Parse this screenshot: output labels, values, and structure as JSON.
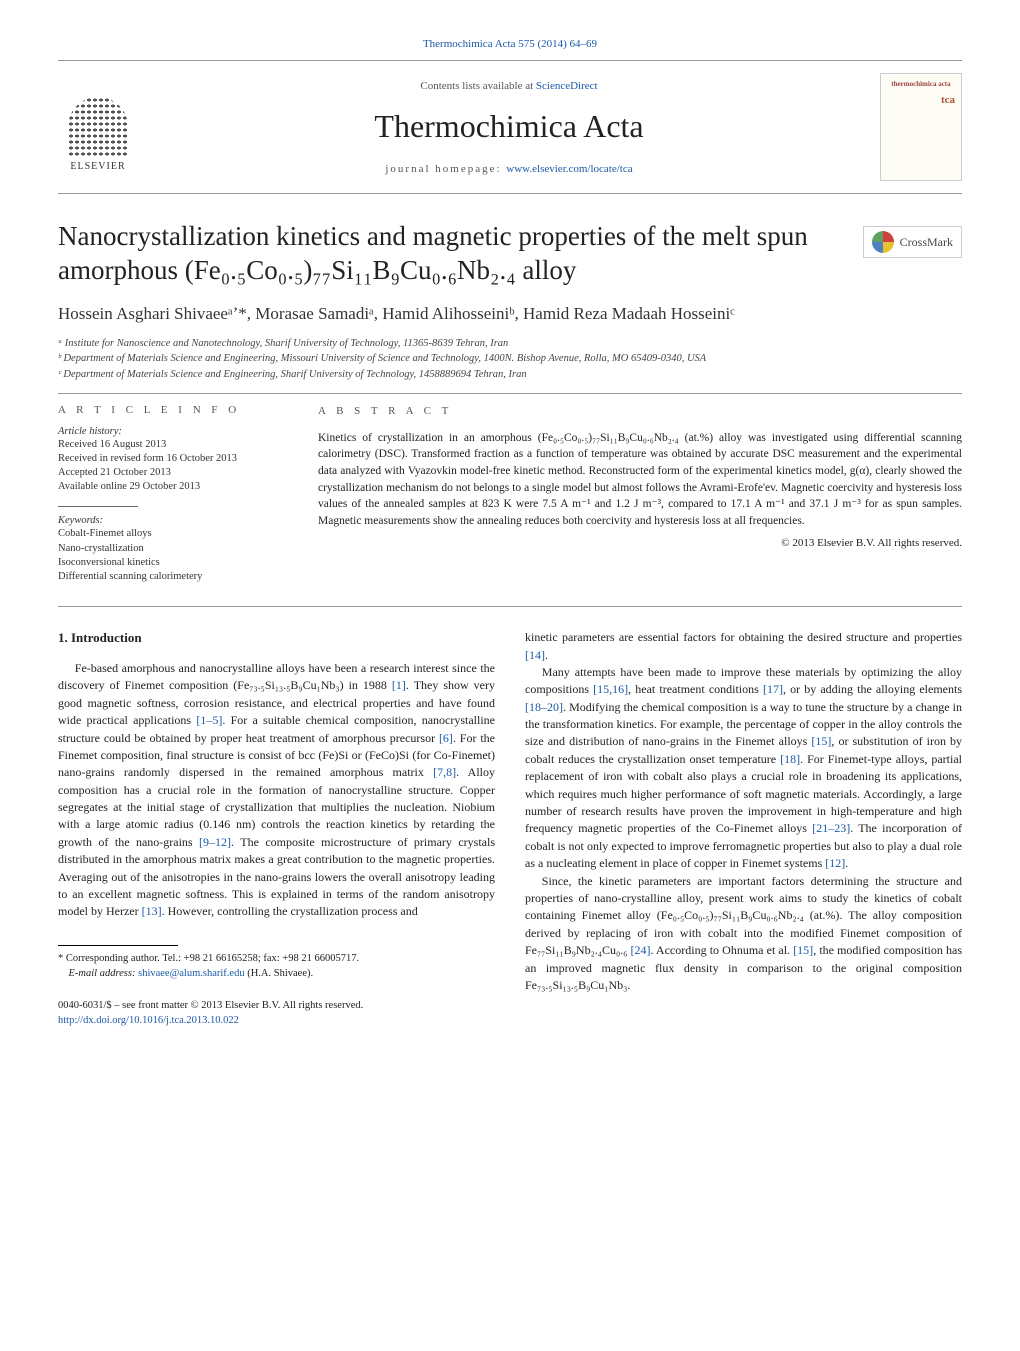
{
  "top_citation": "Thermochimica Acta 575 (2014) 64–69",
  "header": {
    "contents_prefix": "Contents lists available at ",
    "contents_link": "ScienceDirect",
    "journal": "Thermochimica Acta",
    "homepage_prefix": "journal homepage: ",
    "homepage_link": "www.elsevier.com/locate/tca",
    "elsevier": "ELSEVIER",
    "cover_small": "thermochimica acta",
    "cover_abbrev": "tca"
  },
  "crossmark": "CrossMark",
  "title": "Nanocrystallization kinetics and magnetic properties of the melt spun amorphous (Fe₀.₅Co₀.₅)₇₇Si₁₁B₉Cu₀.₆Nb₂.₄ alloy",
  "authors": "Hossein Asghari Shivaeeᵃʼ*, Morasae Samadiᵃ, Hamid Alihosseiniᵇ, Hamid Reza Madaah Hosseiniᶜ",
  "affiliations": {
    "a": "ᵃ Institute for Nanoscience and Nanotechnology, Sharif University of Technology, 11365-8639 Tehran, Iran",
    "b": "ᵇ Department of Materials Science and Engineering, Missouri University of Science and Technology, 1400N. Bishop Avenue, Rolla, MO 65409-0340, USA",
    "c": "ᶜ Department of Materials Science and Engineering, Sharif University of Technology, 1458889694 Tehran, Iran"
  },
  "article_info": {
    "label": "A R T I C L E   I N F O",
    "history_label": "Article history:",
    "history": [
      "Received 16 August 2013",
      "Received in revised form 16 October 2013",
      "Accepted 21 October 2013",
      "Available online 29 October 2013"
    ],
    "keywords_label": "Keywords:",
    "keywords": [
      "Cobalt-Finemet alloys",
      "Nano-crystallization",
      "Isoconversional kinetics",
      "Differential scanning calorimetery"
    ]
  },
  "abstract": {
    "label": "A B S T R A C T",
    "text": "Kinetics of crystallization in an amorphous (Fe₀.₅Co₀.₅)₇₇Si₁₁B₉Cu₀.₆Nb₂.₄ (at.%) alloy was investigated using differential scanning calorimetry (DSC). Transformed fraction as a function of temperature was obtained by accurate DSC measurement and the experimental data analyzed with Vyazovkin model-free kinetic method. Reconstructed form of the experimental kinetics model, g(α), clearly showed the crystallization mechanism do not belongs to a single model but almost follows the Avrami-Erofe'ev. Magnetic coercivity and hysteresis loss values of the annealed samples at 823 K were 7.5 A m⁻¹ and 1.2 J m⁻³, compared to 17.1 A m⁻¹ and 37.1 J m⁻³ for as spun samples. Magnetic measurements show the annealing reduces both coercivity and hysteresis loss at all frequencies.",
    "copyright": "© 2013 Elsevier B.V. All rights reserved."
  },
  "section1": {
    "heading": "1.  Introduction",
    "p1a": "Fe-based amorphous and nanocrystalline alloys have been a research interest since the discovery of Finemet composition (Fe₇₃.₅Si₁₃.₅B₉Cu₁Nb₃) in 1988 ",
    "ref1": "[1]",
    "p1b": ". They show very good magnetic softness, corrosion resistance, and electrical properties and have found wide practical applications ",
    "ref1_5": "[1–5]",
    "p1c": ". For a suitable chemical composition, nanocrystalline structure could be obtained by proper heat treatment of amorphous precursor ",
    "ref6": "[6]",
    "p1d": ". For the Finemet composition, final structure is consist of bcc (Fe)Si or (FeCo)Si (for Co-Finemet) nano-grains randomly dispersed in the remained amorphous matrix ",
    "ref7_8": "[7,8]",
    "p1e": ". Alloy composition has a crucial role in the formation of nanocrystalline structure. Copper segregates at the initial stage of crystallization that multiplies the nucleation. Niobium with a large atomic radius (0.146 nm) controls the reaction kinetics by retarding the growth of the nano-grains ",
    "ref9_12": "[9–12]",
    "p1f": ". The composite microstructure of primary crystals distributed in the amorphous matrix makes a great contribution to the magnetic properties. Averaging out of the anisotropies in the nano-grains lowers the overall anisotropy leading to an excellent magnetic softness. This is explained in terms of the random anisotropy model by Herzer ",
    "ref13": "[13]",
    "p1g": ". However, controlling the crystallization process and ",
    "p2a": "kinetic parameters are essential factors for obtaining the desired structure and properties ",
    "ref14": "[14]",
    "p2b": ".",
    "p3a": "Many attempts have been made to improve these materials by optimizing the alloy compositions ",
    "ref15_16": "[15,16]",
    "p3b": ", heat treatment conditions ",
    "ref17": "[17]",
    "p3c": ", or by adding the alloying elements ",
    "ref18_20": "[18–20]",
    "p3d": ". Modifying the chemical composition is a way to tune the structure by a change in the transformation kinetics. For example, the percentage of copper in the alloy controls the size and distribution of nano-grains in the Finemet alloys ",
    "ref15": "[15]",
    "p3e": ", or substitution of iron by cobalt reduces the crystallization onset temperature ",
    "ref18": "[18]",
    "p3f": ". For Finemet-type alloys, partial replacement of iron with cobalt also plays a crucial role in broadening its applications, which requires much higher performance of soft magnetic materials. Accordingly, a large number of research results have proven the improvement in high-temperature and high frequency magnetic properties of the Co-Finemet alloys ",
    "ref21_23": "[21–23]",
    "p3g": ". The incorporation of cobalt is not only expected to improve ferromagnetic properties but also to play a dual role as a nucleating element in place of copper in Finemet systems ",
    "ref12": "[12]",
    "p3h": ".",
    "p4a": "Since, the kinetic parameters are important factors determining the structure and properties of nano-crystalline alloy, present work aims to study the kinetics of cobalt containing Finemet alloy (Fe₀.₅Co₀.₅)₇₇Si₁₁B₉Cu₀.₆Nb₂.₄ (at.%). The alloy composition derived by replacing of iron with cobalt into the modified Finemet composition of Fe₇₇Si₁₁B₉Nb₂.₄Cu₀.₆ ",
    "ref24": "[24]",
    "p4b": ". According to Ohnuma et al. ",
    "ref15b": "[15]",
    "p4c": ", the modified composition has an improved magnetic flux density in comparison to the original composition Fe₇₃.₅Si₁₃.₅B₉Cu₁Nb₃."
  },
  "footnote": {
    "corr": "* Corresponding author. Tel.: +98 21 66165258; fax: +98 21 66005717.",
    "email_label": "E-mail address: ",
    "email": "shivaee@alum.sharif.edu",
    "email_who": " (H.A. Shivaee)."
  },
  "footer": {
    "line1": "0040-6031/$ – see front matter © 2013 Elsevier B.V. All rights reserved.",
    "doi": "http://dx.doi.org/10.1016/j.tca.2013.10.022"
  },
  "colors": {
    "link": "#1a5aa8",
    "text": "#222222",
    "rule": "#999999"
  }
}
